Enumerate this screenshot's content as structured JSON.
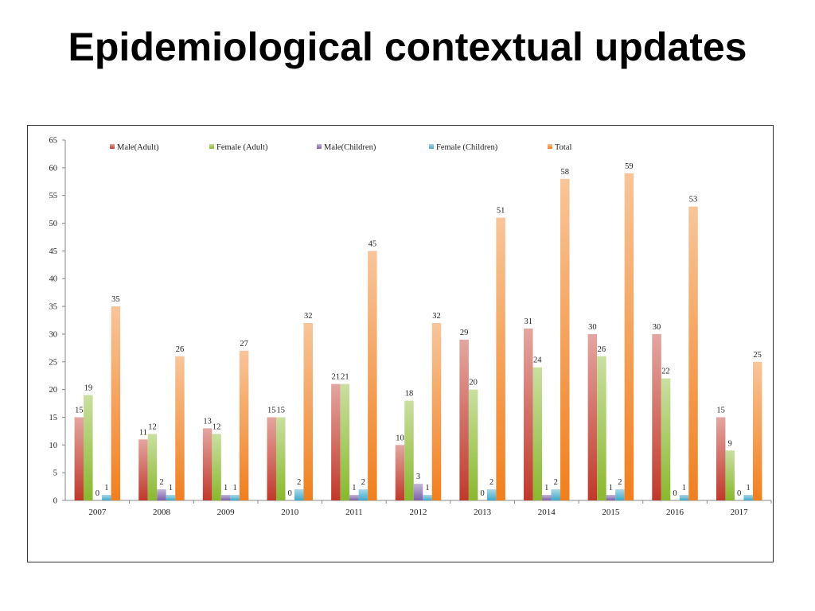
{
  "title": "Epidemiological contextual updates",
  "chart_data": {
    "type": "bar",
    "categories": [
      "2007",
      "2008",
      "2009",
      "2010",
      "2011",
      "2012",
      "2013",
      "2014",
      "2015",
      "2016",
      "2017"
    ],
    "series": [
      {
        "name": "Male(Adult)",
        "color": "#c0392b",
        "values": [
          15,
          11,
          13,
          15,
          21,
          10,
          29,
          31,
          30,
          30,
          15
        ]
      },
      {
        "name": "Female (Adult)",
        "color": "#8ab82e",
        "values": [
          19,
          12,
          12,
          15,
          21,
          18,
          20,
          24,
          26,
          22,
          9
        ]
      },
      {
        "name": "Male(Children)",
        "color": "#7d5fa8",
        "values": [
          0,
          2,
          1,
          0,
          1,
          3,
          0,
          1,
          1,
          0,
          0
        ]
      },
      {
        "name": "Female (Children)",
        "color": "#3fa9c9",
        "values": [
          1,
          1,
          1,
          2,
          2,
          1,
          2,
          2,
          2,
          1,
          1
        ]
      },
      {
        "name": "Total",
        "color": "#f07f1e",
        "values": [
          35,
          26,
          27,
          32,
          45,
          32,
          51,
          58,
          59,
          53,
          25
        ]
      }
    ],
    "ylim": [
      0,
      65
    ],
    "yticks": [
      0,
      5,
      10,
      15,
      20,
      25,
      30,
      35,
      40,
      45,
      50,
      55,
      60,
      65
    ],
    "grid": false,
    "legend_position": "top",
    "data_labels": true
  }
}
